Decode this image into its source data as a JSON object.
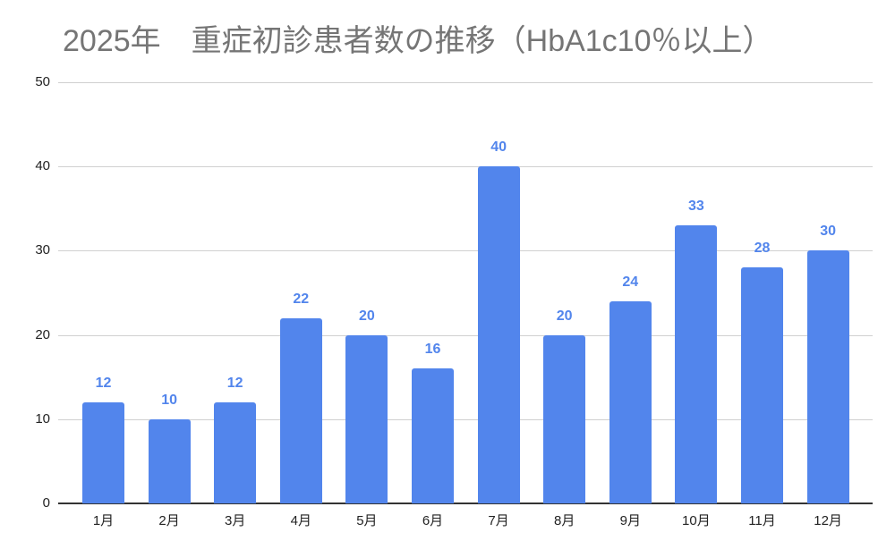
{
  "chart_data": {
    "type": "bar",
    "title": "2025年　重症初診患者数の推移（HbA1c10％以上）",
    "xlabel": "",
    "ylabel": "",
    "categories": [
      "1月",
      "2月",
      "3月",
      "4月",
      "5月",
      "6月",
      "7月",
      "8月",
      "9月",
      "10月",
      "11月",
      "12月"
    ],
    "values": [
      12,
      10,
      12,
      22,
      20,
      16,
      40,
      20,
      24,
      33,
      28,
      30
    ],
    "ylim": [
      0,
      50
    ],
    "yticks": [
      "0",
      "10",
      "20",
      "30",
      "40",
      "50"
    ],
    "grid": true,
    "legend": "none",
    "data_labels": true,
    "bar_color": "#5285ec"
  }
}
